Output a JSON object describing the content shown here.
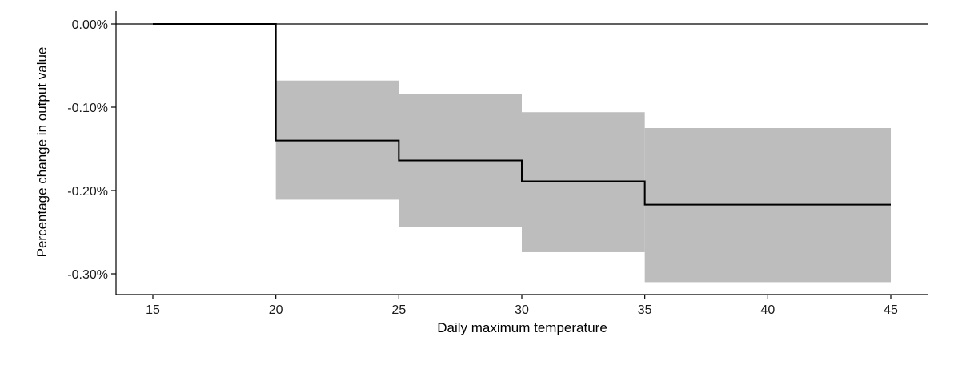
{
  "chart_data": {
    "type": "line",
    "step": true,
    "xlabel": "Daily maximum temperature",
    "ylabel": "Percentage change in output value",
    "xlim": [
      15,
      45
    ],
    "ylim": [
      -0.3,
      0.0
    ],
    "x_ticks": [
      15,
      20,
      25,
      30,
      35,
      40,
      45
    ],
    "y_ticks": [
      0.0,
      -0.1,
      -0.2,
      -0.3
    ],
    "y_tick_labels": [
      "0.00%",
      "-0.10%",
      "-0.20%",
      "-0.30%"
    ],
    "grid": false,
    "reference_line_y": 0.0,
    "segments": [
      {
        "x_start": 15,
        "x_end": 20,
        "estimate": 0.0,
        "ci_low": null,
        "ci_high": null
      },
      {
        "x_start": 20,
        "x_end": 25,
        "estimate": -0.14,
        "ci_low": -0.211,
        "ci_high": -0.068
      },
      {
        "x_start": 25,
        "x_end": 30,
        "estimate": -0.164,
        "ci_low": -0.244,
        "ci_high": -0.084
      },
      {
        "x_start": 30,
        "x_end": 35,
        "estimate": -0.189,
        "ci_low": -0.274,
        "ci_high": -0.106
      },
      {
        "x_start": 35,
        "x_end": 45,
        "estimate": -0.217,
        "ci_low": -0.31,
        "ci_high": -0.125
      }
    ],
    "colors": {
      "line": "#000000",
      "ci_band": "#bdbdbd",
      "axis": "#000000"
    }
  }
}
